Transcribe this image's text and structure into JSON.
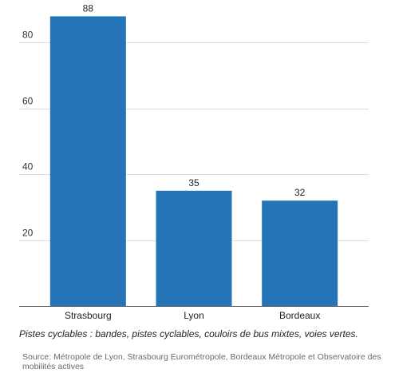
{
  "chart_data": {
    "type": "bar",
    "categories": [
      "Strasbourg",
      "Lyon",
      "Bordeaux"
    ],
    "values": [
      88,
      35,
      32
    ],
    "ylim": [
      0,
      100
    ],
    "yticks": [
      20,
      40,
      60,
      80
    ],
    "grid": true,
    "data_labels": true,
    "bar_color": "#2574b8"
  },
  "note": "Pistes cyclables : bandes, pistes cyclables, couloirs de bus mixtes, voies vertes.",
  "source": "Source: Métropole de Lyon, Strasbourg Eurométropole, Bordeaux Métropole et Observatoire des mobilités actives"
}
